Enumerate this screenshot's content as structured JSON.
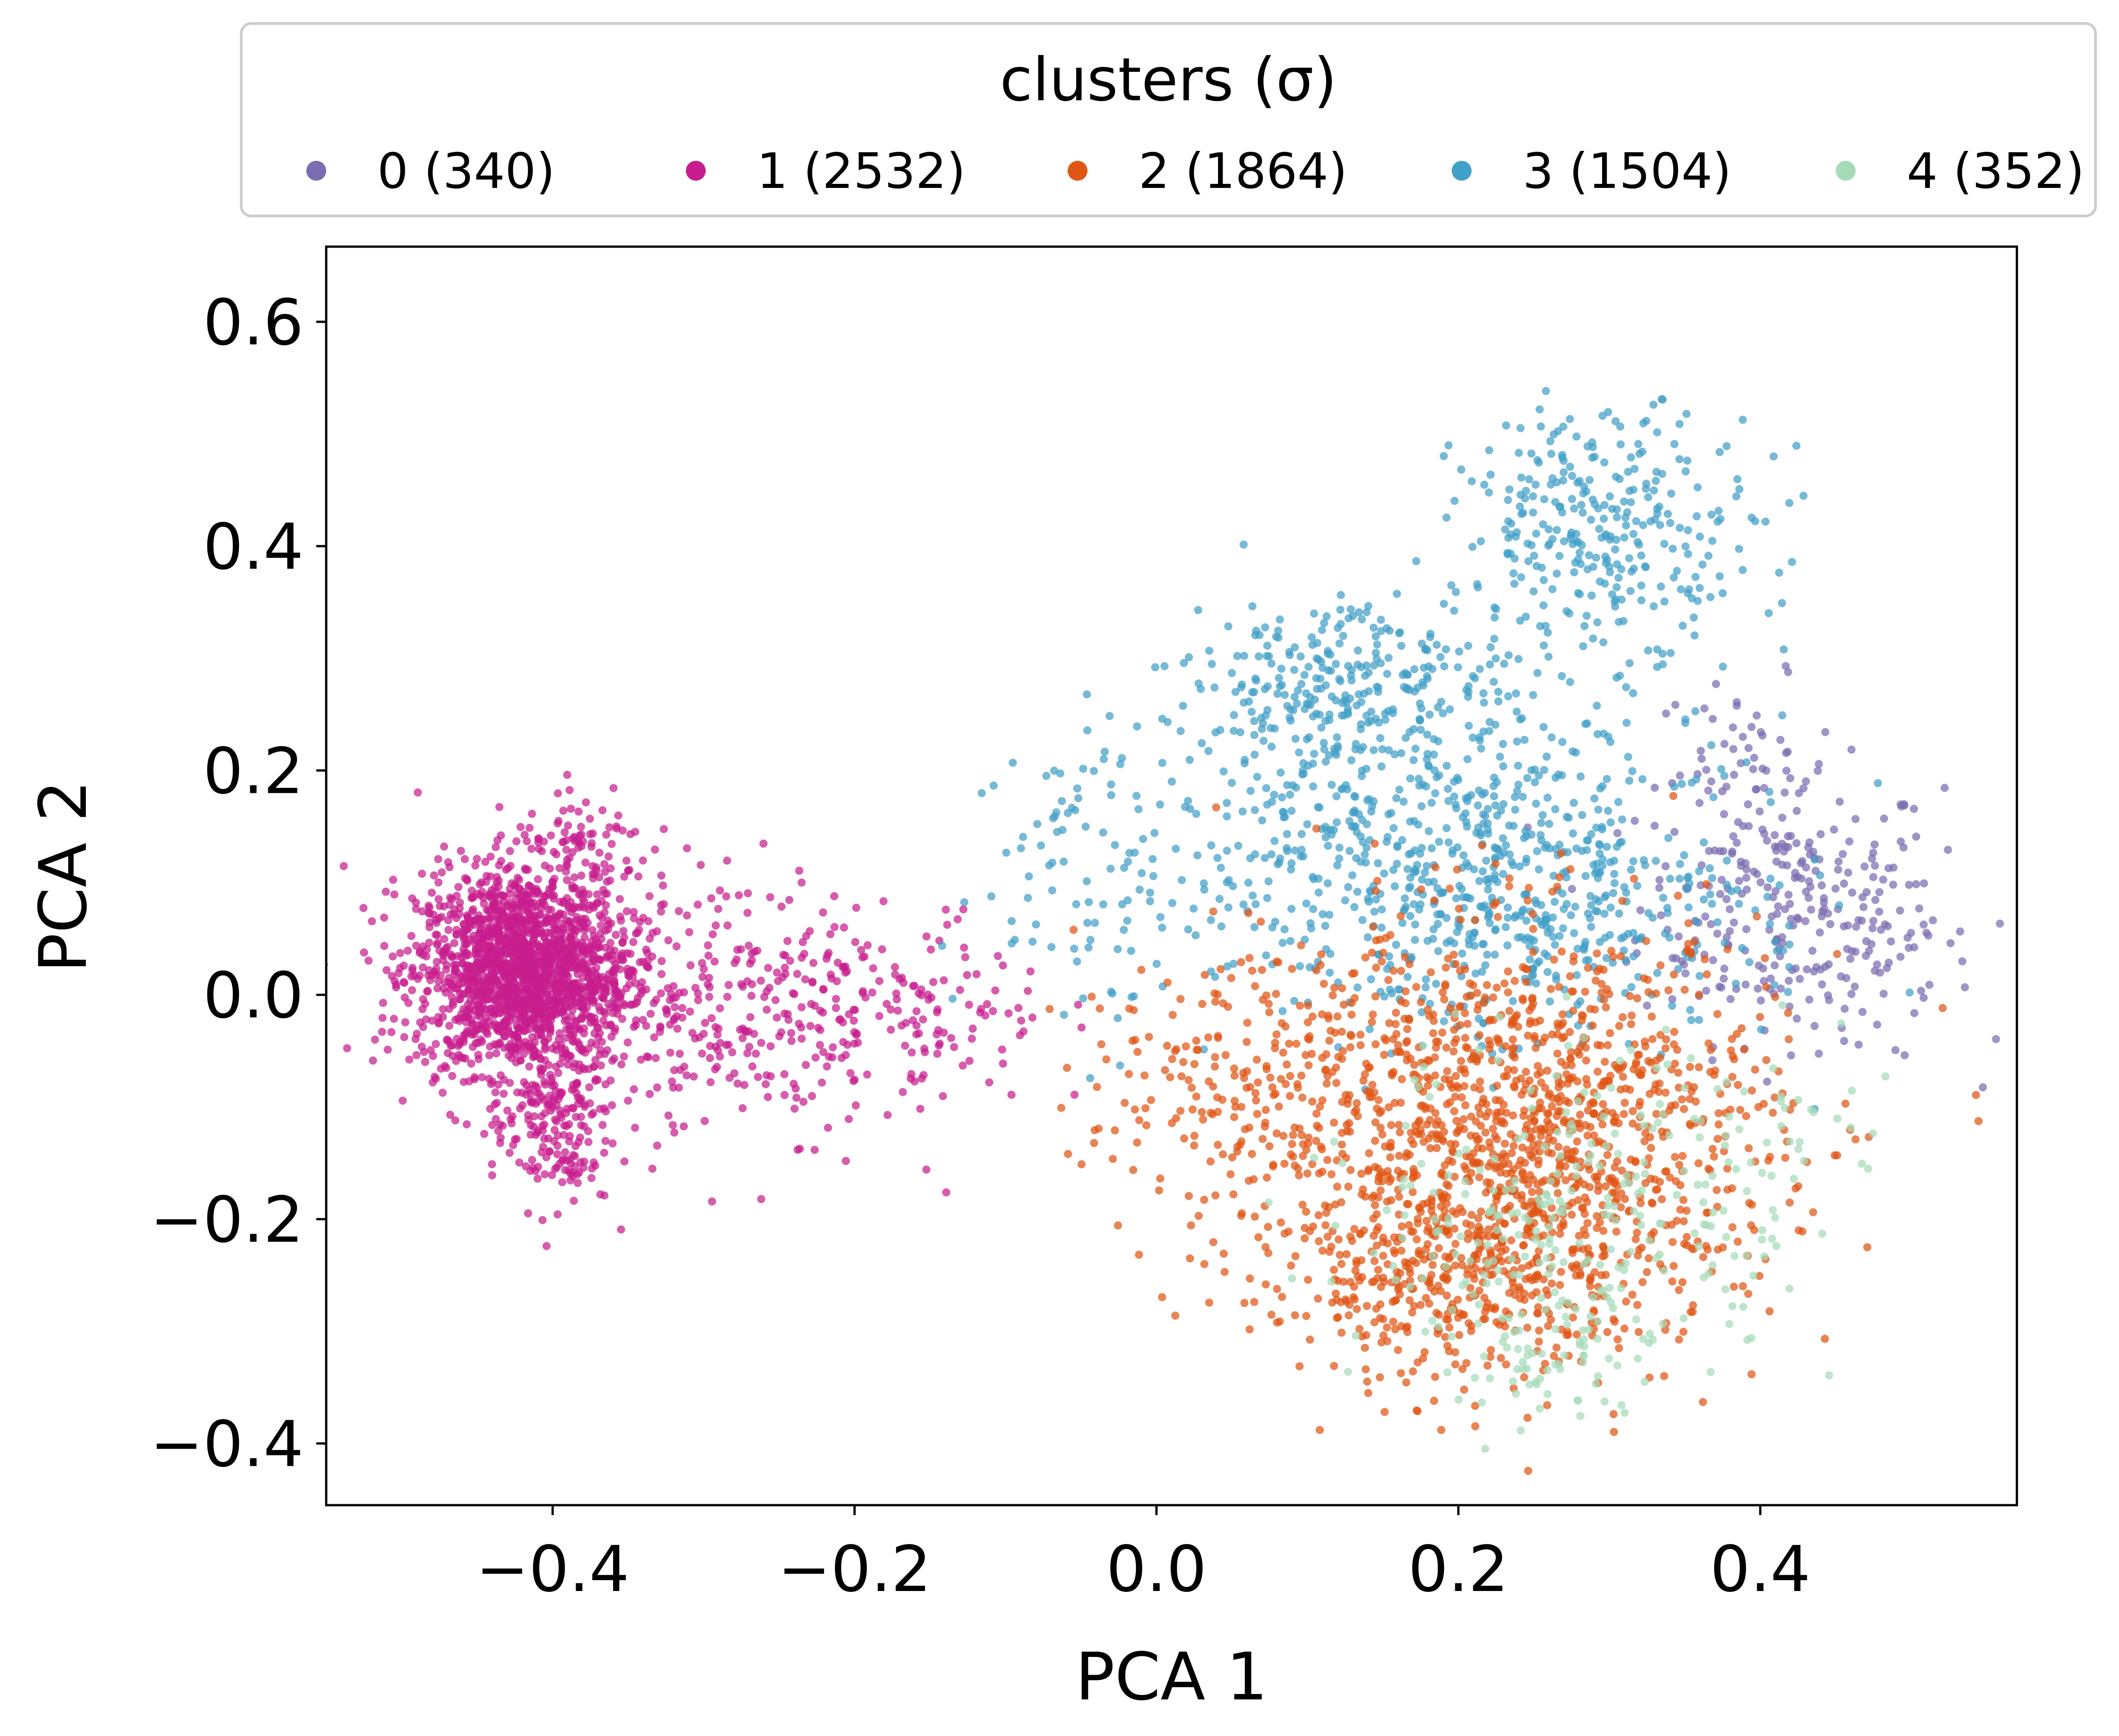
{
  "chart_data": {
    "type": "scatter",
    "title": "",
    "xlabel": "PCA 1",
    "ylabel": "PCA 2",
    "xlim": [
      -0.55,
      0.57
    ],
    "ylim": [
      -0.455,
      0.667
    ],
    "xticks": [
      -0.4,
      -0.2,
      0.0,
      0.2,
      0.4
    ],
    "yticks": [
      -0.4,
      -0.2,
      0.0,
      0.2,
      0.4,
      0.6
    ],
    "xtick_labels": [
      "−0.4",
      "−0.2",
      "0.0",
      "0.2",
      "0.4"
    ],
    "ytick_labels": [
      "−0.4",
      "−0.2",
      "0.0",
      "0.2",
      "0.4",
      "0.6"
    ],
    "grid": false,
    "legend": {
      "title": "clusters (σ)",
      "placement": "top, outside plot area",
      "entries": [
        {
          "label": "0 (340)",
          "color": "#7b6cb1"
        },
        {
          "label": "1 (2532)",
          "color": "#c71d8e"
        },
        {
          "label": "2 (1864)",
          "color": "#e05514"
        },
        {
          "label": "3 (1504)",
          "color": "#41a0c8"
        },
        {
          "label": "4 (352)",
          "color": "#a6dbb8"
        }
      ]
    },
    "series": [
      {
        "name": "0 (340)",
        "cluster": 0,
        "count": 340,
        "color": "#7b6cb1",
        "draw_order": 0,
        "regions": [
          {
            "cx": 0.42,
            "cy": 0.08,
            "sx": 0.05,
            "sy": 0.06,
            "w": 0.75
          },
          {
            "cx": 0.39,
            "cy": 0.2,
            "sx": 0.03,
            "sy": 0.04,
            "w": 0.15
          },
          {
            "cx": 0.48,
            "cy": 0.02,
            "sx": 0.03,
            "sy": 0.04,
            "w": 0.1
          }
        ]
      },
      {
        "name": "1 (2532)",
        "cluster": 1,
        "count": 2532,
        "color": "#c71d8e",
        "draw_order": 1,
        "regions": [
          {
            "cx": -0.42,
            "cy": 0.02,
            "sx": 0.035,
            "sy": 0.045,
            "w": 0.72
          },
          {
            "cx": -0.4,
            "cy": -0.12,
            "sx": 0.02,
            "sy": 0.035,
            "w": 0.07
          },
          {
            "cx": -0.3,
            "cy": 0.0,
            "sx": 0.06,
            "sy": 0.06,
            "w": 0.12
          },
          {
            "cx": -0.17,
            "cy": -0.02,
            "sx": 0.05,
            "sy": 0.05,
            "w": 0.06
          },
          {
            "cx": -0.38,
            "cy": 0.13,
            "sx": 0.025,
            "sy": 0.02,
            "w": 0.03
          }
        ]
      },
      {
        "name": "2 (1864)",
        "cluster": 2,
        "count": 1864,
        "color": "#e05514",
        "draw_order": 3,
        "regions": [
          {
            "cx": 0.24,
            "cy": -0.12,
            "sx": 0.085,
            "sy": 0.09,
            "w": 0.7
          },
          {
            "cx": 0.2,
            "cy": -0.25,
            "sx": 0.07,
            "sy": 0.05,
            "w": 0.2
          },
          {
            "cx": 0.05,
            "cy": -0.08,
            "sx": 0.05,
            "sy": 0.06,
            "w": 0.1
          }
        ]
      },
      {
        "name": "3 (1504)",
        "cluster": 3,
        "count": 1504,
        "color": "#41a0c8",
        "draw_order": 2,
        "regions": [
          {
            "cx": 0.18,
            "cy": 0.14,
            "sx": 0.1,
            "sy": 0.08,
            "w": 0.45
          },
          {
            "cx": 0.3,
            "cy": 0.42,
            "sx": 0.05,
            "sy": 0.05,
            "w": 0.2
          },
          {
            "cx": 0.12,
            "cy": 0.28,
            "sx": 0.05,
            "sy": 0.04,
            "w": 0.15
          },
          {
            "cx": 0.25,
            "cy": 0.05,
            "sx": 0.08,
            "sy": 0.04,
            "w": 0.15
          },
          {
            "cx": -0.04,
            "cy": 0.12,
            "sx": 0.04,
            "sy": 0.07,
            "w": 0.05
          }
        ]
      },
      {
        "name": "4 (352)",
        "cluster": 4,
        "count": 352,
        "color": "#a6dbb8",
        "draw_order": 4,
        "regions": [
          {
            "cx": 0.28,
            "cy": -0.2,
            "sx": 0.07,
            "sy": 0.08,
            "w": 0.8
          },
          {
            "cx": 0.25,
            "cy": -0.34,
            "sx": 0.03,
            "sy": 0.02,
            "w": 0.1
          },
          {
            "cx": 0.42,
            "cy": -0.12,
            "sx": 0.04,
            "sy": 0.04,
            "w": 0.1
          }
        ]
      }
    ]
  }
}
